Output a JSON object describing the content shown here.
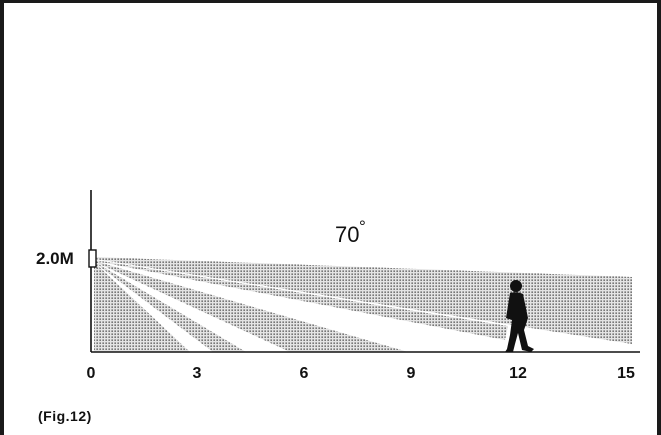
{
  "diagram": {
    "height_label": "2.0M",
    "angle_label": "70",
    "degree_symbol": "°",
    "x_ticks": [
      "0",
      "3",
      "6",
      "9",
      "12",
      "15"
    ],
    "caption": "(Fig.12)"
  },
  "colors": {
    "ink": "#111111",
    "zone_fill": "#e4e4e4",
    "zone_dot": "#3a3a3a",
    "frame": "#1a1a1a"
  },
  "icons": [
    "pir-sensor-icon",
    "walking-person-icon"
  ]
}
